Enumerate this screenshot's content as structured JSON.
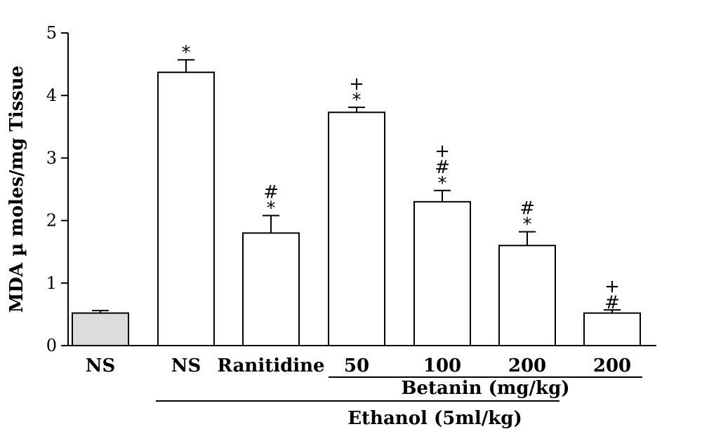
{
  "chart_data": {
    "type": "bar",
    "ylabel": "MDA µ moles/mg Tissue",
    "ylim": [
      0,
      5
    ],
    "yticks": [
      0,
      1,
      2,
      3,
      4,
      5
    ],
    "categories": [
      "NS",
      "NS",
      "Ranitidine",
      "50",
      "100",
      "200",
      "200"
    ],
    "values": [
      0.52,
      4.37,
      1.8,
      3.73,
      2.3,
      1.6,
      0.52
    ],
    "errors": [
      0.04,
      0.2,
      0.28,
      0.08,
      0.18,
      0.22,
      0.05
    ],
    "fills": [
      "#dcdcdc",
      "#ffffff",
      "#ffffff",
      "#ffffff",
      "#ffffff",
      "#ffffff",
      "#ffffff"
    ],
    "annotations": [
      [],
      [
        "*"
      ],
      [
        "#",
        "*"
      ],
      [
        "+",
        "*"
      ],
      [
        "+",
        "#",
        "*"
      ],
      [
        "#",
        "*"
      ],
      [
        "+",
        "#"
      ]
    ],
    "groups": [
      {
        "label": "Betanin (mg/kg)",
        "from": 3,
        "to": 6
      },
      {
        "label": "Ethanol (5ml/kg)",
        "from": 1,
        "to": 5
      }
    ]
  }
}
